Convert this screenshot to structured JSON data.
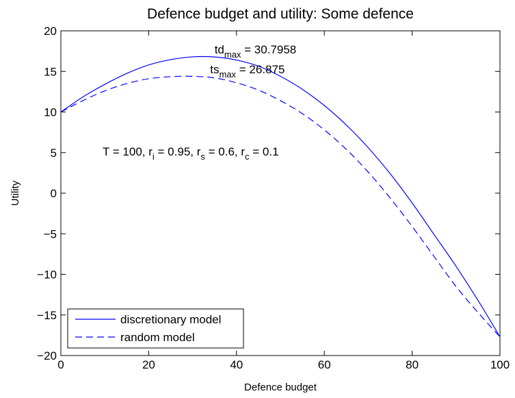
{
  "chart_data": {
    "type": "line",
    "title": "Defence budget and utility: Some defence",
    "xlabel": "Defence budget",
    "ylabel": "Utility",
    "xlim": [
      0,
      100
    ],
    "ylim": [
      -20,
      20
    ],
    "xticks": [
      0,
      20,
      40,
      60,
      80,
      100
    ],
    "yticks": [
      20,
      15,
      10,
      5,
      0,
      -5,
      -10,
      -15,
      -20
    ],
    "grid": false,
    "legend_position": "bottom-left",
    "series": [
      {
        "name": "discretionary model",
        "style": "solid",
        "color": "#0000ff",
        "x": [
          0,
          5,
          10,
          15,
          20,
          25,
          30,
          35,
          40,
          45,
          50,
          55,
          60,
          65,
          70,
          75,
          80,
          85,
          90,
          95,
          100
        ],
        "y": [
          10.0,
          11.85,
          13.4,
          14.75,
          15.8,
          16.45,
          16.8,
          16.78,
          16.4,
          15.65,
          14.4,
          12.8,
          10.8,
          8.4,
          5.6,
          2.4,
          -1.2,
          -5.1,
          -9.0,
          -13.2,
          -17.7
        ]
      },
      {
        "name": "random model",
        "style": "dashed",
        "color": "#0000ff",
        "x": [
          0,
          5,
          10,
          15,
          20,
          25,
          30,
          35,
          40,
          45,
          50,
          55,
          60,
          65,
          70,
          75,
          80,
          85,
          90,
          95,
          100
        ],
        "y": [
          10.0,
          11.4,
          12.6,
          13.5,
          14.1,
          14.35,
          14.4,
          14.2,
          13.6,
          12.7,
          11.4,
          9.8,
          7.8,
          5.4,
          2.6,
          -0.6,
          -4.1,
          -7.8,
          -11.5,
          -14.7,
          -17.7
        ]
      }
    ],
    "annotations": [
      {
        "base": "td",
        "sub": "max",
        "rest": " = 30.7958",
        "x": 35.0,
        "y": 17.2
      },
      {
        "base": "ts",
        "sub": "max",
        "rest": " = 26.875",
        "x": 34.0,
        "y": 14.75
      },
      {
        "parts": [
          "T = 100, r",
          "i",
          " = 0.95, r",
          "s",
          " = 0.6, r",
          "c",
          " = 0.1"
        ],
        "x": 9.5,
        "y": 4.65
      }
    ]
  }
}
